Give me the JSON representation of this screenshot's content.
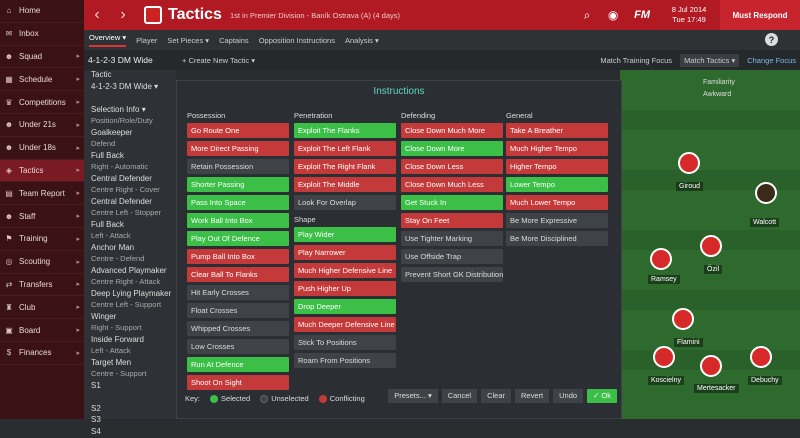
{
  "sidebar": {
    "items": [
      {
        "label": "Home",
        "icon": "home-icon",
        "glyph": "⌂",
        "active": false,
        "arrow": false
      },
      {
        "label": "Inbox",
        "icon": "inbox-icon",
        "glyph": "✉",
        "active": false,
        "arrow": false
      },
      {
        "label": "Squad",
        "icon": "squad-icon",
        "glyph": "☻",
        "active": false,
        "arrow": true
      },
      {
        "label": "Schedule",
        "icon": "calendar-icon",
        "glyph": "▦",
        "active": false,
        "arrow": true
      },
      {
        "label": "Competitions",
        "icon": "trophy-icon",
        "glyph": "♛",
        "active": false,
        "arrow": true
      },
      {
        "label": "Under 21s",
        "icon": "players-icon",
        "glyph": "☻",
        "active": false,
        "arrow": true
      },
      {
        "label": "Under 18s",
        "icon": "players-icon",
        "glyph": "☻",
        "active": false,
        "arrow": true
      },
      {
        "label": "Tactics",
        "icon": "tactics-icon",
        "glyph": "◈",
        "active": true,
        "arrow": true
      },
      {
        "label": "Team Report",
        "icon": "report-icon",
        "glyph": "▤",
        "active": false,
        "arrow": true
      },
      {
        "label": "Staff",
        "icon": "staff-icon",
        "glyph": "☻",
        "active": false,
        "arrow": true
      },
      {
        "label": "Training",
        "icon": "training-icon",
        "glyph": "⚑",
        "active": false,
        "arrow": true
      },
      {
        "label": "Scouting",
        "icon": "scouting-icon",
        "glyph": "◎",
        "active": false,
        "arrow": true
      },
      {
        "label": "Transfers",
        "icon": "transfers-icon",
        "glyph": "⇄",
        "active": false,
        "arrow": true
      },
      {
        "label": "Club",
        "icon": "club-icon",
        "glyph": "♜",
        "active": false,
        "arrow": true
      },
      {
        "label": "Board",
        "icon": "board-icon",
        "glyph": "▣",
        "active": false,
        "arrow": true
      },
      {
        "label": "Finances",
        "icon": "finances-icon",
        "glyph": "$",
        "active": false,
        "arrow": true
      }
    ]
  },
  "topbar": {
    "title": "Tactics",
    "subtitle": "1st in Premier Division - Baník Ostrava (A) (4 days)",
    "fm": "FM",
    "date_line1": "8 Jul 2014",
    "date_line2": "Tue 17:49",
    "continue": "Must Respond"
  },
  "subnav": {
    "items": [
      "Overview ▾",
      "Player",
      "Set Pieces ▾",
      "Captains",
      "Opposition Instructions",
      "Analysis ▾"
    ]
  },
  "toolbar": {
    "formation": "4-1-2-3 DM Wide",
    "new_tactic": "+ Create New Tactic ▾",
    "match_focus": "Match Training Focus",
    "match_tactics": "Match Tactics ▾",
    "change_focus": "Change Focus"
  },
  "left_panel": {
    "rows": [
      {
        "t": "Tactic",
        "main": true
      },
      {
        "t": "4-1-2-3 DM Wide ▾",
        "main": true
      },
      {
        "t": "",
        "main": false
      },
      {
        "t": "Selection Info ▾",
        "main": true
      },
      {
        "t": "Position/Role/Duty",
        "main": false
      },
      {
        "t": "Goalkeeper",
        "main": true
      },
      {
        "t": "Defend",
        "main": false
      },
      {
        "t": "Full Back",
        "main": true
      },
      {
        "t": "Right - Automatic",
        "main": false
      },
      {
        "t": "Central Defender",
        "main": true
      },
      {
        "t": "Centre Right - Cover",
        "main": false
      },
      {
        "t": "Central Defender",
        "main": true
      },
      {
        "t": "Centre Left - Stopper",
        "main": false
      },
      {
        "t": "Full Back",
        "main": true
      },
      {
        "t": "Left - Attack",
        "main": false
      },
      {
        "t": "Anchor Man",
        "main": true
      },
      {
        "t": "Centre - Defend",
        "main": false
      },
      {
        "t": "Advanced Playmaker",
        "main": true
      },
      {
        "t": "Centre Right - Attack",
        "main": false
      },
      {
        "t": "Deep Lying Playmaker",
        "main": true
      },
      {
        "t": "Centre Left - Support",
        "main": false
      },
      {
        "t": "Winger",
        "main": true
      },
      {
        "t": "Right - Support",
        "main": false
      },
      {
        "t": "Inside Forward",
        "main": true
      },
      {
        "t": "Left - Attack",
        "main": false
      },
      {
        "t": "Target Men",
        "main": true
      },
      {
        "t": "Centre - Support",
        "main": false
      },
      {
        "t": "S1",
        "main": true
      },
      {
        "t": "",
        "main": false
      },
      {
        "t": "S2",
        "main": true
      },
      {
        "t": "S3",
        "main": true
      },
      {
        "t": "S4",
        "main": true
      }
    ]
  },
  "pitch": {
    "familiarity": "Familiarity",
    "awkward": "Awkward",
    "players": [
      "Giroud",
      "Walcott",
      "Özil",
      "Ramsey",
      "Flamini",
      "Koscielny",
      "Mertesacker",
      "Debuchy"
    ]
  },
  "modal": {
    "title": "Instructions",
    "columns": [
      {
        "title": "Possession",
        "items": [
          {
            "label": "Go Route One",
            "state": "conflict"
          },
          {
            "label": "More Direct Passing",
            "state": "conflict"
          },
          {
            "label": "Retain Possession",
            "state": "unselected"
          },
          {
            "label": "Shorter Passing",
            "state": "selected"
          },
          {
            "label": "Pass Into Space",
            "state": "selected"
          },
          {
            "label": "Work Ball Into Box",
            "state": "selected"
          },
          {
            "label": "Play Out Of Defence",
            "state": "selected"
          },
          {
            "label": "Pump Ball Into Box",
            "state": "conflict"
          },
          {
            "label": "Clear Ball To Flanks",
            "state": "conflict"
          },
          {
            "label": "Hit Early Crosses",
            "state": "unselected"
          },
          {
            "label": "Float Crosses",
            "state": "unselected"
          },
          {
            "label": "Whipped Crosses",
            "state": "unselected"
          },
          {
            "label": "Low Crosses",
            "state": "unselected"
          },
          {
            "label": "Run At Defence",
            "state": "selected"
          },
          {
            "label": "Shoot On Sight",
            "state": "conflict"
          }
        ]
      },
      {
        "title": "Penetration",
        "items": [
          {
            "label": "Exploit The Flanks",
            "state": "selected"
          },
          {
            "label": "Exploit The Left Flank",
            "state": "conflict"
          },
          {
            "label": "Exploit The Right Flank",
            "state": "conflict"
          },
          {
            "label": "Exploit The Middle",
            "state": "conflict"
          },
          {
            "label": "Look For Overlap",
            "state": "unselected"
          }
        ],
        "subtitle": "Shape",
        "items2": [
          {
            "label": "Play Wider",
            "state": "selected"
          },
          {
            "label": "Play Narrower",
            "state": "conflict"
          },
          {
            "label": "Much Higher Defensive Line",
            "state": "conflict"
          },
          {
            "label": "Push Higher Up",
            "state": "conflict"
          },
          {
            "label": "Drop Deeper",
            "state": "selected"
          },
          {
            "label": "Much Deeper Defensive Line",
            "state": "conflict"
          },
          {
            "label": "Stick To Positions",
            "state": "unselected"
          },
          {
            "label": "Roam From Positions",
            "state": "unselected"
          }
        ]
      },
      {
        "title": "Defending",
        "items": [
          {
            "label": "Close Down Much More",
            "state": "conflict"
          },
          {
            "label": "Close Down More",
            "state": "selected"
          },
          {
            "label": "Close Down Less",
            "state": "conflict"
          },
          {
            "label": "Close Down Much Less",
            "state": "conflict"
          },
          {
            "label": "Get Stuck In",
            "state": "selected"
          },
          {
            "label": "Stay On Feet",
            "state": "conflict"
          },
          {
            "label": "Use Tighter Marking",
            "state": "unselected"
          },
          {
            "label": "Use Offside Trap",
            "state": "unselected"
          },
          {
            "label": "Prevent Short GK Distribution",
            "state": "unselected"
          }
        ]
      },
      {
        "title": "General",
        "items": [
          {
            "label": "Take A Breather",
            "state": "conflict"
          },
          {
            "label": "Much Higher Tempo",
            "state": "conflict"
          },
          {
            "label": "Higher Tempo",
            "state": "conflict"
          },
          {
            "label": "Lower Tempo",
            "state": "selected"
          },
          {
            "label": "Much Lower Tempo",
            "state": "conflict"
          },
          {
            "label": "Be More Expressive",
            "state": "unselected"
          },
          {
            "label": "Be More Disciplined",
            "state": "unselected"
          }
        ]
      }
    ],
    "legend": {
      "key": "Key:",
      "selected": "Selected",
      "unselected": "Unselected",
      "conflicting": "Conflicting"
    },
    "buttons": {
      "presets": "Presets... ▾",
      "cancel": "Cancel",
      "clear": "Clear",
      "revert": "Revert",
      "undo": "Undo",
      "ok": "✓ Ok"
    },
    "colors": {
      "selected": "#3bbf47",
      "conflict": "#c43a3a",
      "unselected": "#3f4347"
    }
  }
}
